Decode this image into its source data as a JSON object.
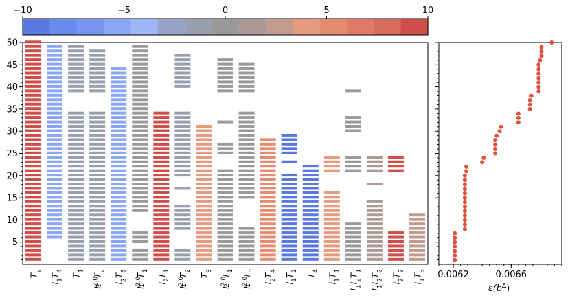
{
  "chart_data": [
    {
      "type": "heatmap",
      "title": "",
      "colorbar": {
        "min": -10,
        "max": 10,
        "ticks": [
          -10,
          -5,
          0,
          5,
          10
        ],
        "tick_labels": [
          "−10",
          "−5",
          "0",
          "5",
          "10"
        ],
        "colors": [
          "#5a78e0",
          "#6a8af0",
          "#7895f2",
          "#8aa6f5",
          "#9cb6f6",
          "#97a4c8",
          "#9a9fb0",
          "#9a9a9a",
          "#ad9a98",
          "#c19a90",
          "#e69a80",
          "#e68a70",
          "#e07a66",
          "#d96a5e",
          "#cf4e4a"
        ]
      },
      "ylabel": "",
      "ylim": [
        0,
        50
      ],
      "y_tick_labels": [
        "5",
        "10",
        "15",
        "20",
        "25",
        "30",
        "35",
        "40",
        "45",
        "50"
      ],
      "y_ticks": [
        5,
        10,
        15,
        20,
        25,
        30,
        35,
        40,
        45,
        50
      ],
      "columns": [
        {
          "name": "T2",
          "label_main": "T",
          "label_sub": "2",
          "value": 9.0,
          "rows": [
            [
              1,
              50
            ]
          ]
        },
        {
          "name": "I1T4",
          "label_main": "I",
          "label_sub": "1",
          "label_main2": "T",
          "label_sub2": "4",
          "value": -5.0,
          "rows": [
            [
              6,
              49
            ]
          ]
        },
        {
          "name": "T1",
          "label_main": "T",
          "label_sub": "1",
          "value": -0.8,
          "rows": [
            [
              1,
              34
            ],
            [
              39,
              49
            ]
          ]
        },
        {
          "name": "I2^2.0 T2",
          "label_main": "I",
          "label_sub": "2",
          "label_sup": "2.0",
          "label_main2": "T",
          "label_sub2": "2",
          "value": -2.0,
          "rows": [
            [
              1,
              34
            ],
            [
              39,
              48
            ]
          ]
        },
        {
          "name": "I2T3",
          "label_main": "I",
          "label_sub": "2",
          "label_main2": "T",
          "label_sub2": "3",
          "value": -5.5,
          "rows": [
            [
              1,
              44
            ]
          ]
        },
        {
          "name": "I1^2.0 T1",
          "label_main": "I",
          "label_sub": "1",
          "label_sup": "2.0",
          "label_main2": "T",
          "label_sub2": "1",
          "value": 0.5,
          "rows": [
            [
              1,
              3
            ],
            [
              5,
              7
            ],
            [
              12,
              49
            ]
          ]
        },
        {
          "name": "I2T1",
          "label_main": "I",
          "label_sub": "2",
          "label_main2": "T",
          "label_sub2": "1",
          "value": 9.5,
          "rows": [
            [
              1,
              34
            ]
          ]
        },
        {
          "name": "I1^2.0 T2",
          "label_main": "I",
          "label_sub": "1",
          "label_sup": "2.0",
          "label_main2": "T",
          "label_sub2": "2",
          "value": -2.0,
          "rows": [
            [
              1,
              3
            ],
            [
              8,
              13
            ],
            [
              17,
              17
            ],
            [
              20,
              34
            ],
            [
              40,
              47
            ]
          ]
        },
        {
          "name": "T3",
          "label_main": "T",
          "label_sub": "3",
          "value": 3.5,
          "rows": [
            [
              1,
              31
            ]
          ]
        },
        {
          "name": "I2^2.0 T1",
          "label_main": "I",
          "label_sub": "2",
          "label_sup": "2.0",
          "label_main2": "T",
          "label_sub2": "1",
          "value": -0.5,
          "rows": [
            [
              1,
              21
            ],
            [
              25,
              27
            ],
            [
              32,
              32
            ],
            [
              39,
              46
            ]
          ]
        },
        {
          "name": "I1^2.0 T3",
          "label_main": "I",
          "label_sub": "1",
          "label_sup": "2.0",
          "label_main2": "T",
          "label_sub2": "3",
          "value": -0.3,
          "rows": [
            [
              1,
              8
            ],
            [
              15,
              34
            ],
            [
              39,
              45
            ]
          ]
        },
        {
          "name": "I2T4",
          "label_main": "I",
          "label_sub": "2",
          "label_main2": "T",
          "label_sub2": "4",
          "value": 5.5,
          "rows": [
            [
              1,
              28
            ]
          ]
        },
        {
          "name": "I1T2",
          "label_main": "I",
          "label_sub": "1",
          "label_main2": "T",
          "label_sub2": "2",
          "value": -9.5,
          "rows": [
            [
              1,
              20
            ],
            [
              23,
              23
            ],
            [
              25,
              29
            ]
          ]
        },
        {
          "name": "T4",
          "label_main": "T",
          "label_sub": "4",
          "value": -9.0,
          "rows": [
            [
              1,
              22
            ]
          ]
        },
        {
          "name": "I1T1",
          "label_main": "I",
          "label_sub": "1",
          "label_main2": "T",
          "label_sub2": "1",
          "value": 4.5,
          "rows": [
            [
              1,
              16
            ],
            [
              21,
              24
            ]
          ]
        },
        {
          "name": "I1I2T1",
          "label_main": "I",
          "label_sub": "1",
          "label_main2": "I",
          "label_sub2": "2",
          "label_main3": "T",
          "label_sub3": "1",
          "value": -0.5,
          "rows": [
            [
              1,
              9
            ],
            [
              21,
              24
            ],
            [
              30,
              33
            ],
            [
              39,
              39
            ]
          ]
        },
        {
          "name": "I1I2T2",
          "label_main": "I",
          "label_sub": "1",
          "label_main2": "I",
          "label_sub2": "2",
          "label_main3": "T",
          "label_sub3": "2",
          "value": 1.5,
          "rows": [
            [
              1,
              14
            ],
            [
              18,
              18
            ],
            [
              21,
              24
            ]
          ]
        },
        {
          "name": "I2T2",
          "label_main": "I",
          "label_sub": "2",
          "label_main2": "T",
          "label_sub2": "2",
          "value": 9.5,
          "rows": [
            [
              1,
              7
            ],
            [
              21,
              24
            ]
          ]
        },
        {
          "name": "I1T3",
          "label_main": "I",
          "label_sub": "1",
          "label_main2": "T",
          "label_sub2": "3",
          "value": 2.0,
          "rows": [
            [
              1,
              11
            ]
          ]
        }
      ]
    },
    {
      "type": "scatter",
      "title": "",
      "xlabel": "ε(b^Δ)",
      "xlabel_main": "ε(b",
      "xlabel_sup": "Δ",
      "xlabel_end": ")",
      "xlim": [
        0.0061,
        0.00695
      ],
      "ylim": [
        0,
        50
      ],
      "x_ticks": [
        0.0062,
        0.0066
      ],
      "x_tick_labels": [
        "0.0062",
        "0.0066"
      ],
      "point_color": "#e0503c",
      "points": [
        {
          "x": 0.00621,
          "y": 1
        },
        {
          "x": 0.00621,
          "y": 2
        },
        {
          "x": 0.00621,
          "y": 3
        },
        {
          "x": 0.00621,
          "y": 4
        },
        {
          "x": 0.00621,
          "y": 5
        },
        {
          "x": 0.00621,
          "y": 6
        },
        {
          "x": 0.00621,
          "y": 7
        },
        {
          "x": 0.00628,
          "y": 8
        },
        {
          "x": 0.00628,
          "y": 9
        },
        {
          "x": 0.00628,
          "y": 10
        },
        {
          "x": 0.00628,
          "y": 11
        },
        {
          "x": 0.00628,
          "y": 12
        },
        {
          "x": 0.00628,
          "y": 13
        },
        {
          "x": 0.00628,
          "y": 14
        },
        {
          "x": 0.00628,
          "y": 15
        },
        {
          "x": 0.00628,
          "y": 16
        },
        {
          "x": 0.00628,
          "y": 17
        },
        {
          "x": 0.00628,
          "y": 18
        },
        {
          "x": 0.00628,
          "y": 19
        },
        {
          "x": 0.00628,
          "y": 20
        },
        {
          "x": 0.00629,
          "y": 21
        },
        {
          "x": 0.00629,
          "y": 22
        },
        {
          "x": 0.0064,
          "y": 23
        },
        {
          "x": 0.00641,
          "y": 24
        },
        {
          "x": 0.00649,
          "y": 25
        },
        {
          "x": 0.00649,
          "y": 26
        },
        {
          "x": 0.00649,
          "y": 27
        },
        {
          "x": 0.00649,
          "y": 28
        },
        {
          "x": 0.0065,
          "y": 29
        },
        {
          "x": 0.00652,
          "y": 30
        },
        {
          "x": 0.00653,
          "y": 31
        },
        {
          "x": 0.00665,
          "y": 32
        },
        {
          "x": 0.00665,
          "y": 33
        },
        {
          "x": 0.00665,
          "y": 34
        },
        {
          "x": 0.00673,
          "y": 35
        },
        {
          "x": 0.00673,
          "y": 36
        },
        {
          "x": 0.00673,
          "y": 37
        },
        {
          "x": 0.00674,
          "y": 38
        },
        {
          "x": 0.00679,
          "y": 39
        },
        {
          "x": 0.00679,
          "y": 40
        },
        {
          "x": 0.00679,
          "y": 41
        },
        {
          "x": 0.00679,
          "y": 42
        },
        {
          "x": 0.00679,
          "y": 43
        },
        {
          "x": 0.00679,
          "y": 44
        },
        {
          "x": 0.00679,
          "y": 45
        },
        {
          "x": 0.0068,
          "y": 46
        },
        {
          "x": 0.00681,
          "y": 47
        },
        {
          "x": 0.00681,
          "y": 48
        },
        {
          "x": 0.00681,
          "y": 49
        },
        {
          "x": 0.00688,
          "y": 50
        }
      ]
    }
  ]
}
